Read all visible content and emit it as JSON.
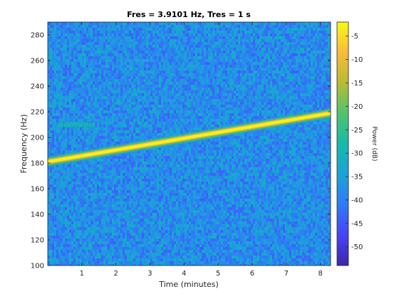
{
  "chart_data": {
    "type": "heatmap",
    "title": "Fres = 3.9101 Hz, Tres = 1 s",
    "xlabel": "Time (minutes)",
    "ylabel": "Frequency (Hz)",
    "xlim": [
      0,
      8.3
    ],
    "ylim": [
      100,
      290
    ],
    "xticks": [
      1,
      2,
      3,
      4,
      5,
      6,
      7,
      8
    ],
    "yticks": [
      100,
      120,
      140,
      160,
      180,
      200,
      220,
      240,
      260,
      280
    ],
    "colorbar": {
      "label": "Power (dB)",
      "range": [
        -54,
        -2
      ],
      "ticks": [
        -5,
        -10,
        -15,
        -20,
        -25,
        -30,
        -35,
        -40,
        -45,
        -50
      ]
    },
    "background_level_db": -38,
    "features": [
      {
        "kind": "chirp",
        "t_start": 0,
        "t_end": 8.3,
        "f_start": 181,
        "f_end": 219,
        "level_db": -3
      },
      {
        "kind": "tone",
        "t_start": 0.3,
        "t_end": 1.4,
        "freq": 210,
        "level_db": -28
      }
    ],
    "colormap": [
      "#3e26a8",
      "#4743f8",
      "#2f7bf6",
      "#1aa3d9",
      "#14bba8",
      "#52c26f",
      "#b8bb35",
      "#f9bb3a",
      "#f8fa13"
    ]
  }
}
